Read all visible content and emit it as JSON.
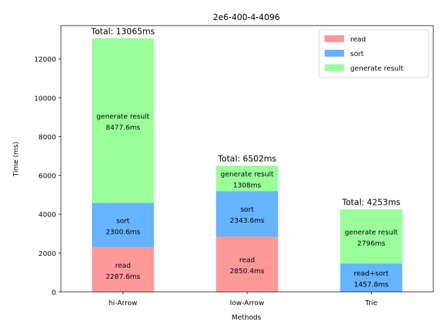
{
  "chart_data": {
    "type": "bar",
    "stacked": true,
    "title": "2e6-400-4-4096",
    "xlabel": "Methods",
    "ylabel": "Time (ms)",
    "ylim": [
      0,
      13718
    ],
    "yticks": [
      0,
      2000,
      4000,
      6000,
      8000,
      10000,
      12000
    ],
    "grid": false,
    "legend_position": "top-right",
    "categories": [
      "hi-Arrow",
      "low-Arrow",
      "Trie"
    ],
    "series": [
      {
        "name": "read",
        "color": "#ff9999"
      },
      {
        "name": "sort",
        "color": "#66b3ff"
      },
      {
        "name": "generate result",
        "color": "#99ff99"
      }
    ],
    "bars": [
      {
        "category": "hi-Arrow",
        "total_label": "Total: 13065ms",
        "segments": [
          {
            "series": "read",
            "value": 2287.6,
            "label_name": "read",
            "label_value": "2287.6ms",
            "color": "#ff9999"
          },
          {
            "series": "sort",
            "value": 2300.6,
            "label_name": "sort",
            "label_value": "2300.6ms",
            "color": "#66b3ff"
          },
          {
            "series": "generate result",
            "value": 8477.6,
            "label_name": "generate result",
            "label_value": "8477.6ms",
            "color": "#99ff99"
          }
        ]
      },
      {
        "category": "low-Arrow",
        "total_label": "Total: 6502ms",
        "segments": [
          {
            "series": "read",
            "value": 2850.4,
            "label_name": "read",
            "label_value": "2850.4ms",
            "color": "#ff9999"
          },
          {
            "series": "sort",
            "value": 2343.6,
            "label_name": "sort",
            "label_value": "2343.6ms",
            "color": "#66b3ff"
          },
          {
            "series": "generate result",
            "value": 1308,
            "label_name": "generate result",
            "label_value": "1308ms",
            "color": "#99ff99"
          }
        ]
      },
      {
        "category": "Trie",
        "total_label": "Total: 4253ms",
        "segments": [
          {
            "series": "read+sort",
            "value": 1457.8,
            "label_name": "read+sort",
            "label_value": "1457.8ms",
            "color": "#66b3ff"
          },
          {
            "series": "generate result",
            "value": 2796,
            "label_name": "generate result",
            "label_value": "2796ms",
            "color": "#99ff99"
          }
        ]
      }
    ]
  }
}
